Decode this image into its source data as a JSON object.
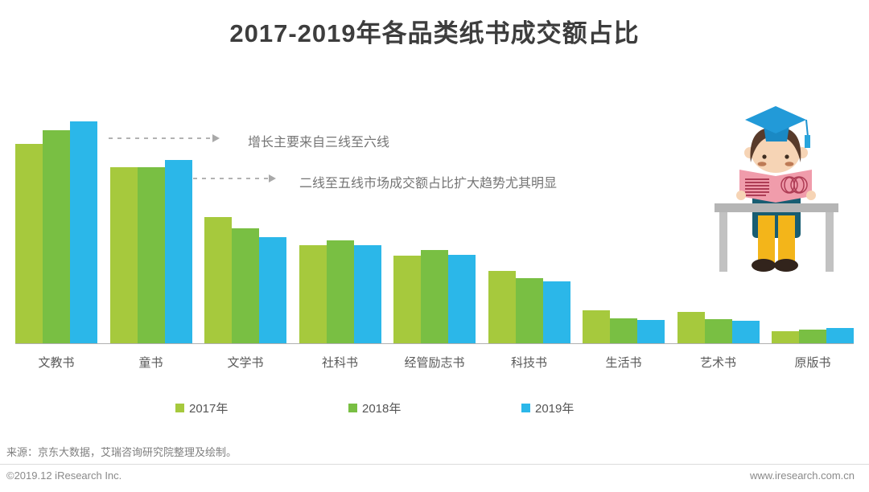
{
  "title": "2017-2019年各品类纸书成交额占比",
  "annotations": [
    {
      "text": "增长主要来自三线至六线"
    },
    {
      "text": "二线至五线市场成交额占比扩大趋势尤其明显"
    }
  ],
  "chart_data": {
    "type": "bar",
    "title": "2017-2019年各品类纸书成交额占比",
    "categories": [
      "文教书",
      "童书",
      "文学书",
      "社科书",
      "经管励志书",
      "科技书",
      "生活书",
      "艺术书",
      "原版书"
    ],
    "series": [
      {
        "name": "2017年",
        "color": "#a6c93d",
        "values": [
          22.5,
          19.8,
          14.2,
          11.1,
          9.9,
          8.2,
          3.7,
          3.5,
          1.4
        ]
      },
      {
        "name": "2018年",
        "color": "#79bf43",
        "values": [
          24.0,
          19.8,
          13.0,
          11.6,
          10.5,
          7.3,
          2.8,
          2.7,
          1.5
        ]
      },
      {
        "name": "2019年",
        "color": "#2bb7e9",
        "values": [
          25.0,
          20.7,
          12.0,
          11.1,
          10.0,
          7.0,
          2.6,
          2.5,
          1.7
        ]
      }
    ],
    "unit": "%",
    "ylim": [
      0,
      26
    ],
    "grid": false,
    "legend_position": "bottom",
    "xlabel": "",
    "ylabel": ""
  },
  "colors": {
    "year2017": "#a6c93d",
    "year2018": "#79bf43",
    "year2019": "#2bb7e9",
    "axis": "#b0b0b0",
    "annotation_text": "#757575"
  },
  "illustration": {
    "name": "graduate-student-reading-book"
  },
  "source": "来源：京东大数据，艾瑞咨询研究院整理及绘制。",
  "footer": {
    "copyright": "©2019.12 iResearch Inc.",
    "website": "www.iresearch.com.cn"
  }
}
